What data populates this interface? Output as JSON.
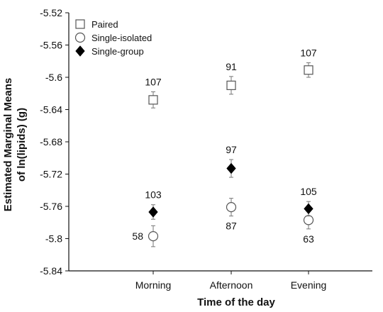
{
  "chart_data": {
    "type": "scatter",
    "title": "",
    "xlabel": "Time of the day",
    "ylabel_lines": [
      "Estimated Marginal Means",
      "of ln(lipids) (g)"
    ],
    "categories": [
      "Morning",
      "Afternoon",
      "Evening"
    ],
    "ylim": [
      -5.84,
      -5.52
    ],
    "yticks": [
      -5.52,
      -5.56,
      -5.6,
      -5.64,
      -5.68,
      -5.72,
      -5.76,
      -5.8,
      -5.84
    ],
    "ytick_labels": [
      "-5.52",
      "-5.56",
      "-5.6",
      "-5.64",
      "-5.68",
      "-5.72",
      "-5.76",
      "-5.8",
      "-5.84"
    ],
    "grid": false,
    "legend_position": "top-left",
    "series": [
      {
        "name": "Paired",
        "marker": "square-open",
        "values": [
          -5.628,
          -5.61,
          -5.591
        ],
        "errors": [
          0.01,
          0.011,
          0.009
        ],
        "labels": [
          "107",
          "91",
          "107"
        ],
        "label_pos": [
          "above",
          "above",
          "above"
        ]
      },
      {
        "name": "Single-isolated",
        "marker": "circle-open",
        "values": [
          -5.797,
          -5.761,
          -5.777
        ],
        "errors": [
          0.013,
          0.011,
          0.011
        ],
        "labels": [
          "58",
          "87",
          "63"
        ],
        "label_pos": [
          "left",
          "below",
          "below"
        ]
      },
      {
        "name": "Single-group",
        "marker": "diamond-filled",
        "values": [
          -5.767,
          -5.713,
          -5.763
        ],
        "errors": [
          0.009,
          0.011,
          0.009
        ],
        "labels": [
          "103",
          "97",
          "105"
        ],
        "label_pos": [
          "above",
          "above",
          "above"
        ]
      }
    ],
    "colors": {
      "marker_stroke": "#555555",
      "diamond_fill": "#000000",
      "axis": "#111111",
      "errorbar": "#777777"
    }
  }
}
